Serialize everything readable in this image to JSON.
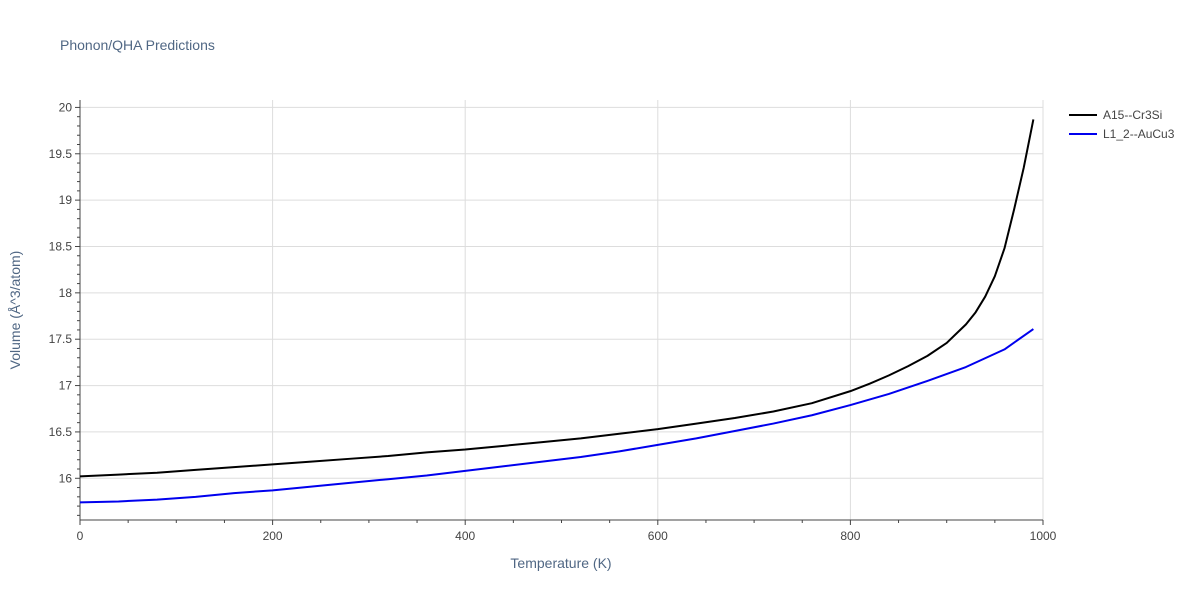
{
  "chart_data": {
    "type": "line",
    "title": "Phonon/QHA Predictions",
    "xlabel": "Temperature (K)",
    "ylabel": "Volume (Å^3/atom)",
    "xlim": [
      0,
      1000
    ],
    "ylim": [
      15.55,
      20.08
    ],
    "x_ticks": [
      0,
      200,
      400,
      600,
      800,
      1000
    ],
    "y_ticks": [
      16,
      16.5,
      17,
      17.5,
      18,
      18.5,
      19,
      19.5,
      20
    ],
    "grid": true,
    "legend_position": "top-right",
    "series": [
      {
        "name": "A15--Cr3Si",
        "color": "#000000",
        "x": [
          0,
          40,
          80,
          120,
          160,
          200,
          240,
          280,
          320,
          360,
          400,
          440,
          480,
          520,
          560,
          600,
          640,
          680,
          720,
          760,
          800,
          820,
          840,
          860,
          880,
          900,
          910,
          920,
          930,
          940,
          950,
          960,
          970,
          980,
          990
        ],
        "y": [
          16.02,
          16.04,
          16.06,
          16.09,
          16.12,
          16.15,
          16.18,
          16.21,
          16.24,
          16.28,
          16.31,
          16.35,
          16.39,
          16.43,
          16.48,
          16.53,
          16.59,
          16.65,
          16.72,
          16.81,
          16.94,
          17.02,
          17.11,
          17.21,
          17.32,
          17.46,
          17.56,
          17.66,
          17.79,
          17.96,
          18.18,
          18.48,
          18.9,
          19.35,
          19.87
        ]
      },
      {
        "name": "L1_2--AuCu3",
        "color": "#0000ee",
        "x": [
          0,
          40,
          80,
          120,
          160,
          200,
          240,
          280,
          320,
          360,
          400,
          440,
          480,
          520,
          560,
          600,
          640,
          680,
          720,
          760,
          800,
          840,
          880,
          920,
          960,
          990
        ],
        "y": [
          15.74,
          15.75,
          15.77,
          15.8,
          15.84,
          15.87,
          15.91,
          15.95,
          15.99,
          16.03,
          16.08,
          16.13,
          16.18,
          16.23,
          16.29,
          16.36,
          16.43,
          16.51,
          16.59,
          16.68,
          16.79,
          16.91,
          17.05,
          17.2,
          17.39,
          17.61
        ]
      }
    ]
  }
}
